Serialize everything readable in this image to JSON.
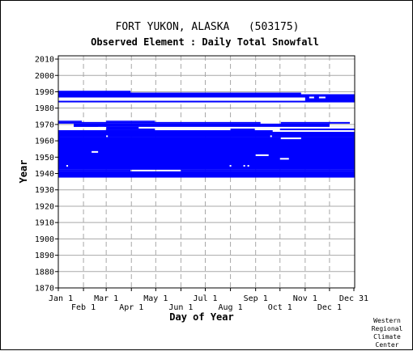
{
  "chart_data": {
    "type": "heatmap",
    "title": "FORT YUKON, ALASKA   (503175)",
    "subtitle": "Observed Element : Daily Total Snowfall",
    "xlabel": "Day of Year",
    "ylabel": "Year",
    "xlim": [
      1,
      366
    ],
    "ylim": [
      1870,
      2012
    ],
    "yticks": [
      1870,
      1880,
      1890,
      1900,
      1910,
      1920,
      1930,
      1940,
      1950,
      1960,
      1970,
      1980,
      1990,
      2000,
      2010
    ],
    "xticks": [
      {
        "day": 1,
        "label": "Jan 1",
        "row": 1
      },
      {
        "day": 32,
        "label": "Feb 1",
        "row": 2
      },
      {
        "day": 60,
        "label": "Mar 1",
        "row": 1
      },
      {
        "day": 91,
        "label": "Apr 1",
        "row": 2
      },
      {
        "day": 121,
        "label": "May 1",
        "row": 1
      },
      {
        "day": 152,
        "label": "Jun 1",
        "row": 2
      },
      {
        "day": 182,
        "label": "Jul 1",
        "row": 1
      },
      {
        "day": 213,
        "label": "Aug 1",
        "row": 2
      },
      {
        "day": 244,
        "label": "Sep 1",
        "row": 1
      },
      {
        "day": 274,
        "label": "Oct 1",
        "row": 2
      },
      {
        "day": 305,
        "label": "Nov 1",
        "row": 1
      },
      {
        "day": 335,
        "label": "Dec 1",
        "row": 2
      },
      {
        "day": 365,
        "label": "Dec 31",
        "row": 1
      }
    ],
    "series_color": "#0000ff",
    "grid": true,
    "data_blocks": [
      {
        "y0": 1937.5,
        "y1": 1941.3,
        "d0": 1,
        "d1": 366
      },
      {
        "y0": 1941.3,
        "y1": 1942.3,
        "d0": 1,
        "d1": 90
      },
      {
        "y0": 1941.3,
        "y1": 1942.3,
        "d0": 152,
        "d1": 366
      },
      {
        "y0": 1942.3,
        "y1": 1962.5,
        "d0": 1,
        "d1": 366
      },
      {
        "y0": 1962.5,
        "y1": 1966.5,
        "d0": 1,
        "d1": 366
      },
      {
        "y0": 1966.5,
        "y1": 1968.5,
        "d0": 60,
        "d1": 366
      },
      {
        "y0": 1968.5,
        "y1": 1970.5,
        "d0": 20,
        "d1": 335
      },
      {
        "y0": 1970.5,
        "y1": 1971.5,
        "d0": 1,
        "d1": 250
      },
      {
        "y0": 1970.5,
        "y1": 1971.5,
        "d0": 275,
        "d1": 360
      },
      {
        "y0": 1971.5,
        "y1": 1972.3,
        "d0": 1,
        "d1": 30
      },
      {
        "y0": 1971.5,
        "y1": 1972.3,
        "d0": 60,
        "d1": 120
      },
      {
        "y0": 1983.5,
        "y1": 1988.5,
        "d0": 1,
        "d1": 366
      },
      {
        "y0": 1988.5,
        "y1": 1989.5,
        "d0": 1,
        "d1": 300
      },
      {
        "y0": 1989.5,
        "y1": 1990.6,
        "d0": 1,
        "d1": 90
      }
    ],
    "gap_blocks": [
      {
        "y0": 1944.2,
        "y1": 1945.2,
        "d0": 11,
        "d1": 13
      },
      {
        "y0": 1944.2,
        "y1": 1945.2,
        "d0": 212,
        "d1": 214
      },
      {
        "y0": 1944.2,
        "y1": 1945.2,
        "d0": 229,
        "d1": 231
      },
      {
        "y0": 1944.2,
        "y1": 1945.2,
        "d0": 234,
        "d1": 236
      },
      {
        "y0": 1948.5,
        "y1": 1949.5,
        "d0": 274,
        "d1": 285
      },
      {
        "y0": 1950.7,
        "y1": 1951.7,
        "d0": 244,
        "d1": 260
      },
      {
        "y0": 1952.7,
        "y1": 1953.7,
        "d0": 42,
        "d1": 50
      },
      {
        "y0": 1961.0,
        "y1": 1962.0,
        "d0": 275,
        "d1": 300
      },
      {
        "y0": 1962.3,
        "y1": 1963.3,
        "d0": 60,
        "d1": 62
      },
      {
        "y0": 1962.3,
        "y1": 1963.3,
        "d0": 262,
        "d1": 264
      },
      {
        "y0": 1965.5,
        "y1": 1966.5,
        "d0": 265,
        "d1": 366
      },
      {
        "y0": 1966.5,
        "y1": 1967.5,
        "d0": 120,
        "d1": 213
      },
      {
        "y0": 1966.5,
        "y1": 1967.5,
        "d0": 243,
        "d1": 274
      },
      {
        "y0": 1967.5,
        "y1": 1968.5,
        "d0": 50,
        "d1": 58
      },
      {
        "y0": 1967.5,
        "y1": 1968.5,
        "d0": 100,
        "d1": 366
      },
      {
        "y0": 1984.5,
        "y1": 1986.5,
        "d0": 1,
        "d1": 305
      },
      {
        "y0": 1986.0,
        "y1": 1987.0,
        "d0": 310,
        "d1": 316
      },
      {
        "y0": 1986.0,
        "y1": 1987.0,
        "d0": 322,
        "d1": 330
      }
    ],
    "credit": [
      "Western",
      "Regional",
      "Climate",
      "Center"
    ]
  }
}
